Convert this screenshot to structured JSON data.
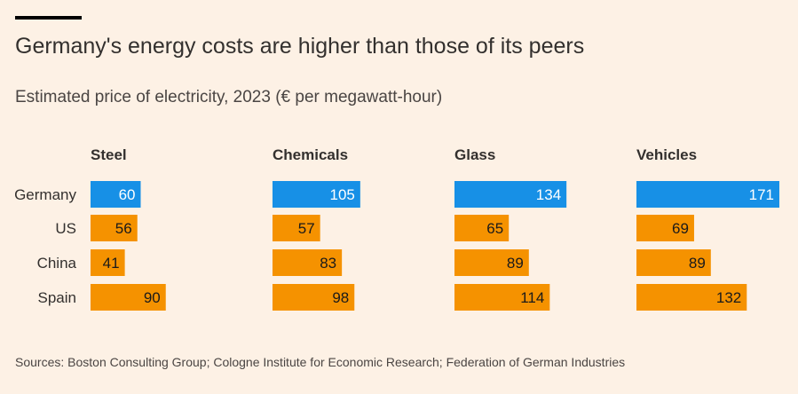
{
  "title": "Germany's energy costs are higher than those of its peers",
  "subtitle": "Estimated price of electricity, 2023 (€ per megawatt-hour)",
  "source": "Sources: Boston Consulting Group; Cologne Institute for Economic Research; Federation of German Industries",
  "colors": {
    "highlight": "#1790e6",
    "peer": "#f59200",
    "highlight_text": "#ffffff",
    "peer_text": "#1a1a1a",
    "label_text": "#33302e"
  },
  "chart_data": {
    "type": "bar",
    "orientation": "horizontal",
    "small_multiples": true,
    "categories": [
      "Germany",
      "US",
      "China",
      "Spain"
    ],
    "highlight_category": "Germany",
    "panels": [
      {
        "title": "Steel",
        "values": [
          60,
          56,
          41,
          90
        ]
      },
      {
        "title": "Chemicals",
        "values": [
          105,
          57,
          83,
          98
        ]
      },
      {
        "title": "Glass",
        "values": [
          134,
          65,
          89,
          114
        ]
      },
      {
        "title": "Vehicles",
        "values": [
          171,
          69,
          89,
          132
        ]
      }
    ],
    "xlim": [
      0,
      171
    ],
    "data_labels": true,
    "grid": false,
    "legend": "none"
  }
}
